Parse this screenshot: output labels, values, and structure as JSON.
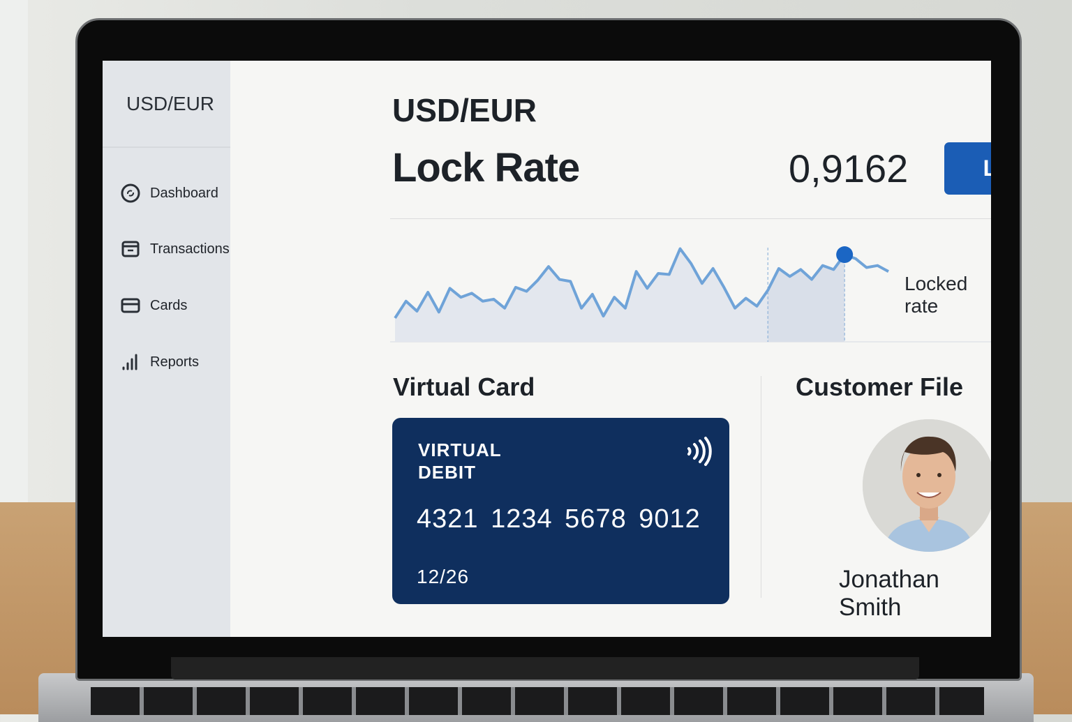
{
  "sidebar": {
    "title": "USD/EUR",
    "items": [
      {
        "label": "Dashboard",
        "icon": "refresh-circle-icon"
      },
      {
        "label": "Transactions",
        "icon": "receipt-icon"
      },
      {
        "label": "Cards",
        "icon": "credit-card-icon"
      },
      {
        "label": "Reports",
        "icon": "bar-chart-icon"
      }
    ]
  },
  "header": {
    "pair": "USD/EUR",
    "title": "Lock Rate",
    "rate": "0,9162",
    "lock_label": "Lock"
  },
  "chart": {
    "label": "Locked rate",
    "line_color": "#6fa3d8",
    "marker_color": "#1b66c4",
    "levels": [
      24,
      41,
      31,
      50,
      30,
      54,
      45,
      49,
      41,
      43,
      34,
      55,
      51,
      62,
      76,
      63,
      61,
      34,
      48,
      26,
      45,
      34,
      71,
      54,
      69,
      68,
      94,
      79,
      59,
      74,
      55,
      34,
      44,
      36,
      52,
      74,
      66,
      73,
      63,
      77,
      73,
      88,
      84,
      75,
      77,
      71
    ],
    "window_start_index": 34,
    "locked_index": 41
  },
  "virtual_card": {
    "title": "Virtual Card",
    "type_line1": "VIRTUAL",
    "type_line2": "DEBIT",
    "number": "4321 1234 5678 9012",
    "expiry": "12/26",
    "color": "#0f2f5e"
  },
  "customer": {
    "title": "Customer File",
    "name": "Jonathan Smith"
  },
  "colors": {
    "accent": "#1b5db5"
  }
}
